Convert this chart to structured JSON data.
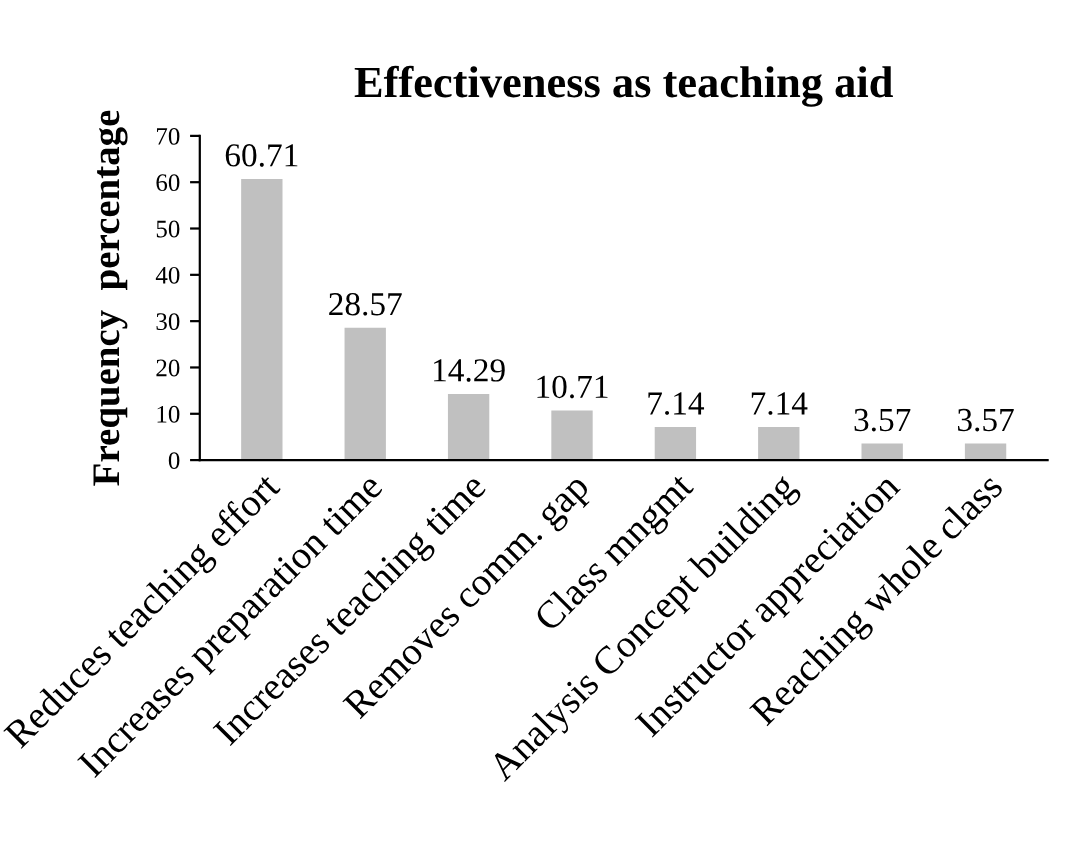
{
  "chart_data": {
    "type": "bar",
    "title": "Effectiveness as teaching aid",
    "ylabel": "Frequency  percentage",
    "categories": [
      "Reduces teaching effort",
      "Increases preparation time",
      "Increases teaching time",
      "Removes comm. gap",
      "Class mngmt",
      "Analysis Concept building",
      "Instructor appreciation",
      "Reaching whole class"
    ],
    "values": [
      60.71,
      28.57,
      14.29,
      10.71,
      7.14,
      7.14,
      3.57,
      3.57
    ],
    "color": "#c0c0c0",
    "ylim": [
      0,
      70
    ],
    "yticks": [
      0,
      10,
      20,
      30,
      40,
      50,
      60,
      70
    ],
    "grid": false,
    "data_labels": true
  }
}
